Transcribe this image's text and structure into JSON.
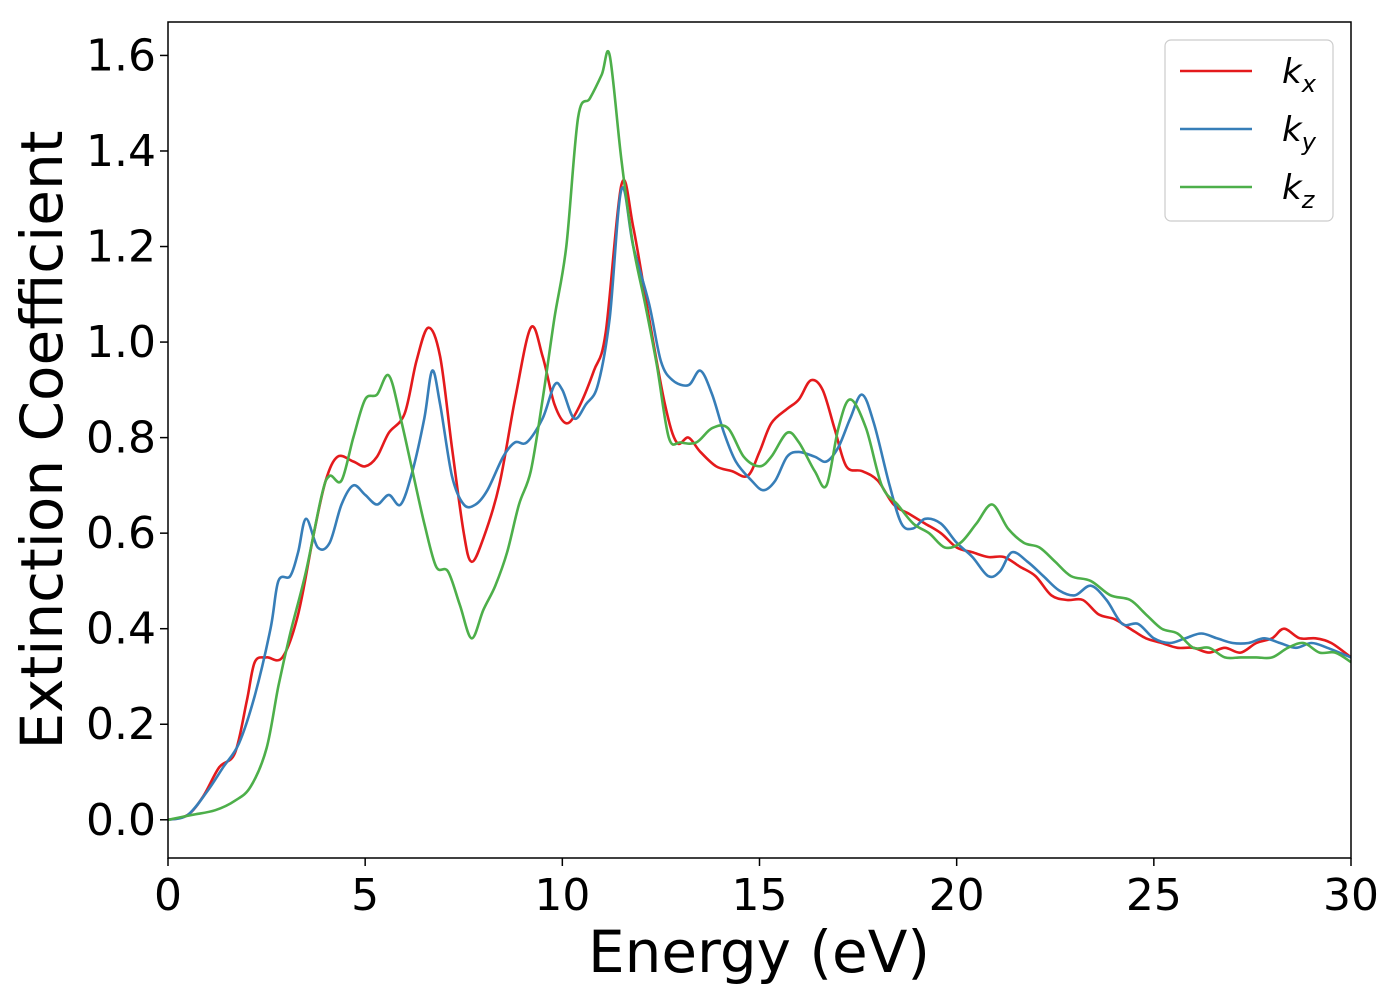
{
  "chart_data": {
    "type": "line",
    "title": "",
    "xlabel": "Energy (eV)",
    "ylabel": "Extinction Coefficient",
    "xlim": [
      0,
      30
    ],
    "ylim": [
      -0.08,
      1.67
    ],
    "xticks": [
      "0",
      "5",
      "10",
      "15",
      "20",
      "25",
      "30"
    ],
    "yticks": [
      "0.0",
      "0.2",
      "0.4",
      "0.6",
      "0.8",
      "1.0",
      "1.2",
      "1.4",
      "1.6"
    ],
    "grid": false,
    "legend_position": "top-right",
    "series": [
      {
        "name": "k",
        "subscript": "x",
        "color": "#e41a1c",
        "points": [
          [
            0,
            0
          ],
          [
            0.5,
            0.01
          ],
          [
            0.9,
            0.05
          ],
          [
            1.3,
            0.11
          ],
          [
            1.7,
            0.14
          ],
          [
            2.0,
            0.25
          ],
          [
            2.2,
            0.33
          ],
          [
            2.5,
            0.34
          ],
          [
            2.9,
            0.34
          ],
          [
            3.3,
            0.43
          ],
          [
            3.7,
            0.6
          ],
          [
            4.0,
            0.71
          ],
          [
            4.3,
            0.76
          ],
          [
            4.7,
            0.75
          ],
          [
            5.0,
            0.74
          ],
          [
            5.3,
            0.76
          ],
          [
            5.6,
            0.81
          ],
          [
            6.0,
            0.85
          ],
          [
            6.3,
            0.96
          ],
          [
            6.6,
            1.03
          ],
          [
            6.9,
            0.97
          ],
          [
            7.2,
            0.78
          ],
          [
            7.5,
            0.6
          ],
          [
            7.7,
            0.54
          ],
          [
            8.0,
            0.59
          ],
          [
            8.4,
            0.7
          ],
          [
            8.8,
            0.88
          ],
          [
            9.2,
            1.03
          ],
          [
            9.5,
            0.97
          ],
          [
            9.8,
            0.87
          ],
          [
            10.1,
            0.83
          ],
          [
            10.4,
            0.86
          ],
          [
            10.8,
            0.94
          ],
          [
            11.1,
            1.02
          ],
          [
            11.5,
            1.33
          ],
          [
            11.8,
            1.24
          ],
          [
            12.2,
            1.05
          ],
          [
            12.6,
            0.87
          ],
          [
            12.9,
            0.79
          ],
          [
            13.2,
            0.8
          ],
          [
            13.5,
            0.77
          ],
          [
            13.9,
            0.74
          ],
          [
            14.3,
            0.73
          ],
          [
            14.7,
            0.72
          ],
          [
            15.0,
            0.77
          ],
          [
            15.3,
            0.83
          ],
          [
            15.7,
            0.86
          ],
          [
            16.0,
            0.88
          ],
          [
            16.3,
            0.92
          ],
          [
            16.6,
            0.9
          ],
          [
            16.9,
            0.82
          ],
          [
            17.2,
            0.74
          ],
          [
            17.6,
            0.73
          ],
          [
            18.0,
            0.71
          ],
          [
            18.4,
            0.66
          ],
          [
            18.8,
            0.64
          ],
          [
            19.2,
            0.62
          ],
          [
            19.6,
            0.6
          ],
          [
            20.0,
            0.57
          ],
          [
            20.4,
            0.56
          ],
          [
            20.8,
            0.55
          ],
          [
            21.2,
            0.55
          ],
          [
            21.6,
            0.53
          ],
          [
            22.0,
            0.51
          ],
          [
            22.4,
            0.47
          ],
          [
            22.8,
            0.46
          ],
          [
            23.2,
            0.46
          ],
          [
            23.6,
            0.43
          ],
          [
            24.0,
            0.42
          ],
          [
            24.4,
            0.4
          ],
          [
            24.8,
            0.38
          ],
          [
            25.2,
            0.37
          ],
          [
            25.6,
            0.36
          ],
          [
            26.0,
            0.36
          ],
          [
            26.4,
            0.35
          ],
          [
            26.8,
            0.36
          ],
          [
            27.2,
            0.35
          ],
          [
            27.6,
            0.37
          ],
          [
            28.0,
            0.38
          ],
          [
            28.3,
            0.4
          ],
          [
            28.7,
            0.38
          ],
          [
            29.1,
            0.38
          ],
          [
            29.5,
            0.37
          ],
          [
            30.0,
            0.34
          ]
        ]
      },
      {
        "name": "k",
        "subscript": "y",
        "color": "#377eb8",
        "points": [
          [
            0,
            0
          ],
          [
            0.5,
            0.01
          ],
          [
            1.0,
            0.06
          ],
          [
            1.4,
            0.11
          ],
          [
            1.8,
            0.16
          ],
          [
            2.2,
            0.26
          ],
          [
            2.6,
            0.4
          ],
          [
            2.8,
            0.5
          ],
          [
            3.1,
            0.51
          ],
          [
            3.3,
            0.56
          ],
          [
            3.5,
            0.63
          ],
          [
            3.8,
            0.57
          ],
          [
            4.1,
            0.58
          ],
          [
            4.4,
            0.66
          ],
          [
            4.7,
            0.7
          ],
          [
            5.0,
            0.68
          ],
          [
            5.3,
            0.66
          ],
          [
            5.6,
            0.68
          ],
          [
            5.9,
            0.66
          ],
          [
            6.2,
            0.73
          ],
          [
            6.5,
            0.84
          ],
          [
            6.7,
            0.94
          ],
          [
            6.9,
            0.87
          ],
          [
            7.2,
            0.72
          ],
          [
            7.5,
            0.66
          ],
          [
            7.8,
            0.66
          ],
          [
            8.1,
            0.69
          ],
          [
            8.5,
            0.76
          ],
          [
            8.8,
            0.79
          ],
          [
            9.1,
            0.79
          ],
          [
            9.5,
            0.84
          ],
          [
            9.8,
            0.91
          ],
          [
            10.0,
            0.9
          ],
          [
            10.3,
            0.84
          ],
          [
            10.6,
            0.87
          ],
          [
            10.9,
            0.91
          ],
          [
            11.2,
            1.05
          ],
          [
            11.5,
            1.32
          ],
          [
            11.8,
            1.2
          ],
          [
            12.2,
            1.08
          ],
          [
            12.5,
            0.96
          ],
          [
            12.8,
            0.92
          ],
          [
            13.2,
            0.91
          ],
          [
            13.5,
            0.94
          ],
          [
            13.8,
            0.89
          ],
          [
            14.1,
            0.81
          ],
          [
            14.4,
            0.75
          ],
          [
            14.8,
            0.71
          ],
          [
            15.1,
            0.69
          ],
          [
            15.4,
            0.71
          ],
          [
            15.7,
            0.76
          ],
          [
            16.0,
            0.77
          ],
          [
            16.4,
            0.76
          ],
          [
            16.7,
            0.75
          ],
          [
            17.0,
            0.78
          ],
          [
            17.3,
            0.84
          ],
          [
            17.6,
            0.89
          ],
          [
            17.9,
            0.83
          ],
          [
            18.3,
            0.7
          ],
          [
            18.6,
            0.62
          ],
          [
            18.9,
            0.61
          ],
          [
            19.2,
            0.63
          ],
          [
            19.6,
            0.62
          ],
          [
            20.0,
            0.58
          ],
          [
            20.4,
            0.55
          ],
          [
            20.8,
            0.51
          ],
          [
            21.1,
            0.52
          ],
          [
            21.4,
            0.56
          ],
          [
            21.8,
            0.54
          ],
          [
            22.2,
            0.51
          ],
          [
            22.6,
            0.48
          ],
          [
            23.0,
            0.47
          ],
          [
            23.4,
            0.49
          ],
          [
            23.8,
            0.46
          ],
          [
            24.2,
            0.41
          ],
          [
            24.6,
            0.41
          ],
          [
            25.0,
            0.38
          ],
          [
            25.4,
            0.37
          ],
          [
            25.8,
            0.38
          ],
          [
            26.2,
            0.39
          ],
          [
            26.6,
            0.38
          ],
          [
            27.0,
            0.37
          ],
          [
            27.4,
            0.37
          ],
          [
            27.8,
            0.38
          ],
          [
            28.2,
            0.37
          ],
          [
            28.6,
            0.36
          ],
          [
            29.0,
            0.37
          ],
          [
            29.4,
            0.36
          ],
          [
            30.0,
            0.34
          ]
        ]
      },
      {
        "name": "k",
        "subscript": "z",
        "color": "#4daf4a",
        "points": [
          [
            0,
            0
          ],
          [
            0.6,
            0.01
          ],
          [
            1.2,
            0.02
          ],
          [
            1.7,
            0.04
          ],
          [
            2.1,
            0.07
          ],
          [
            2.5,
            0.15
          ],
          [
            2.8,
            0.28
          ],
          [
            3.1,
            0.39
          ],
          [
            3.5,
            0.52
          ],
          [
            3.9,
            0.68
          ],
          [
            4.1,
            0.72
          ],
          [
            4.4,
            0.71
          ],
          [
            4.7,
            0.8
          ],
          [
            5.0,
            0.88
          ],
          [
            5.3,
            0.89
          ],
          [
            5.6,
            0.93
          ],
          [
            5.9,
            0.84
          ],
          [
            6.2,
            0.73
          ],
          [
            6.5,
            0.62
          ],
          [
            6.8,
            0.53
          ],
          [
            7.1,
            0.52
          ],
          [
            7.4,
            0.45
          ],
          [
            7.7,
            0.38
          ],
          [
            8.0,
            0.44
          ],
          [
            8.3,
            0.49
          ],
          [
            8.6,
            0.56
          ],
          [
            8.9,
            0.66
          ],
          [
            9.2,
            0.73
          ],
          [
            9.5,
            0.88
          ],
          [
            9.8,
            1.05
          ],
          [
            10.1,
            1.2
          ],
          [
            10.4,
            1.47
          ],
          [
            10.7,
            1.51
          ],
          [
            11.0,
            1.56
          ],
          [
            11.2,
            1.6
          ],
          [
            11.5,
            1.38
          ],
          [
            11.8,
            1.2
          ],
          [
            12.1,
            1.08
          ],
          [
            12.4,
            0.95
          ],
          [
            12.7,
            0.8
          ],
          [
            13.0,
            0.79
          ],
          [
            13.4,
            0.79
          ],
          [
            13.8,
            0.82
          ],
          [
            14.2,
            0.82
          ],
          [
            14.6,
            0.76
          ],
          [
            15.0,
            0.74
          ],
          [
            15.3,
            0.76
          ],
          [
            15.7,
            0.81
          ],
          [
            16.0,
            0.79
          ],
          [
            16.4,
            0.73
          ],
          [
            16.7,
            0.7
          ],
          [
            17.0,
            0.82
          ],
          [
            17.3,
            0.88
          ],
          [
            17.7,
            0.82
          ],
          [
            18.1,
            0.7
          ],
          [
            18.5,
            0.66
          ],
          [
            18.9,
            0.62
          ],
          [
            19.3,
            0.6
          ],
          [
            19.7,
            0.57
          ],
          [
            20.1,
            0.58
          ],
          [
            20.5,
            0.62
          ],
          [
            20.9,
            0.66
          ],
          [
            21.3,
            0.61
          ],
          [
            21.7,
            0.58
          ],
          [
            22.1,
            0.57
          ],
          [
            22.5,
            0.54
          ],
          [
            22.9,
            0.51
          ],
          [
            23.4,
            0.5
          ],
          [
            23.9,
            0.47
          ],
          [
            24.4,
            0.46
          ],
          [
            24.8,
            0.43
          ],
          [
            25.2,
            0.4
          ],
          [
            25.6,
            0.39
          ],
          [
            26.0,
            0.36
          ],
          [
            26.4,
            0.36
          ],
          [
            26.8,
            0.34
          ],
          [
            27.2,
            0.34
          ],
          [
            27.6,
            0.34
          ],
          [
            28.0,
            0.34
          ],
          [
            28.4,
            0.36
          ],
          [
            28.8,
            0.37
          ],
          [
            29.2,
            0.35
          ],
          [
            29.6,
            0.35
          ],
          [
            30.0,
            0.33
          ]
        ]
      }
    ]
  }
}
